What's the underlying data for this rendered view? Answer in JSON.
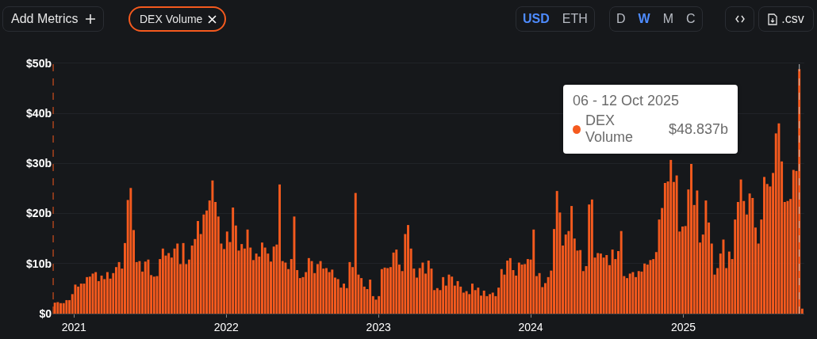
{
  "chart_data": {
    "type": "bar",
    "x": [
      "2020-11-16",
      "2020-11-23",
      "2020-11-30",
      "2020-12-07",
      "2020-12-14",
      "2020-12-21",
      "2020-12-28",
      "2021-01-04",
      "2021-01-11",
      "2021-01-18",
      "2021-01-25",
      "2021-02-01",
      "2021-02-08",
      "2021-02-15",
      "2021-02-22",
      "2021-03-01",
      "2021-03-08",
      "2021-03-15",
      "2021-03-22",
      "2021-03-29",
      "2021-04-05",
      "2021-04-12",
      "2021-04-19",
      "2021-04-26",
      "2021-05-03",
      "2021-05-10",
      "2021-05-17",
      "2021-05-24",
      "2021-05-31",
      "2021-06-07",
      "2021-06-14",
      "2021-06-21",
      "2021-06-28",
      "2021-07-05",
      "2021-07-12",
      "2021-07-19",
      "2021-07-26",
      "2021-08-02",
      "2021-08-09",
      "2021-08-16",
      "2021-08-23",
      "2021-08-30",
      "2021-09-06",
      "2021-09-13",
      "2021-09-20",
      "2021-09-27",
      "2021-10-04",
      "2021-10-11",
      "2021-10-18",
      "2021-10-25",
      "2021-11-01",
      "2021-11-08",
      "2021-11-15",
      "2021-11-22",
      "2021-11-29",
      "2021-12-06",
      "2021-12-13",
      "2021-12-20",
      "2021-12-27",
      "2022-01-03",
      "2022-01-10",
      "2022-01-17",
      "2022-01-24",
      "2022-01-31",
      "2022-02-07",
      "2022-02-14",
      "2022-02-21",
      "2022-02-28",
      "2022-03-07",
      "2022-03-14",
      "2022-03-21",
      "2022-03-28",
      "2022-04-04",
      "2022-04-11",
      "2022-04-18",
      "2022-04-25",
      "2022-05-02",
      "2022-05-09",
      "2022-05-16",
      "2022-05-23",
      "2022-05-30",
      "2022-06-06",
      "2022-06-13",
      "2022-06-20",
      "2022-06-27",
      "2022-07-04",
      "2022-07-11",
      "2022-07-18",
      "2022-07-25",
      "2022-08-01",
      "2022-08-08",
      "2022-08-15",
      "2022-08-22",
      "2022-08-29",
      "2022-09-05",
      "2022-09-12",
      "2022-09-19",
      "2022-09-26",
      "2022-10-03",
      "2022-10-10",
      "2022-10-17",
      "2022-10-24",
      "2022-10-31",
      "2022-11-07",
      "2022-11-14",
      "2022-11-21",
      "2022-11-28",
      "2022-12-05",
      "2022-12-12",
      "2022-12-19",
      "2022-12-26",
      "2023-01-02",
      "2023-01-09",
      "2023-01-16",
      "2023-01-23",
      "2023-01-30",
      "2023-02-06",
      "2023-02-13",
      "2023-02-20",
      "2023-02-27",
      "2023-03-06",
      "2023-03-13",
      "2023-03-20",
      "2023-03-27",
      "2023-04-03",
      "2023-04-10",
      "2023-04-17",
      "2023-04-24",
      "2023-05-01",
      "2023-05-08",
      "2023-05-15",
      "2023-05-22",
      "2023-05-29",
      "2023-06-05",
      "2023-06-12",
      "2023-06-19",
      "2023-06-26",
      "2023-07-03",
      "2023-07-10",
      "2023-07-17",
      "2023-07-24",
      "2023-07-31",
      "2023-08-07",
      "2023-08-14",
      "2023-08-21",
      "2023-08-28",
      "2023-09-04",
      "2023-09-11",
      "2023-09-18",
      "2023-09-25",
      "2023-10-02",
      "2023-10-09",
      "2023-10-16",
      "2023-10-23",
      "2023-10-30",
      "2023-11-06",
      "2023-11-13",
      "2023-11-20",
      "2023-11-27",
      "2023-12-04",
      "2023-12-11",
      "2023-12-18",
      "2023-12-25",
      "2024-01-01",
      "2024-01-08",
      "2024-01-15",
      "2024-01-22",
      "2024-01-29",
      "2024-02-05",
      "2024-02-12",
      "2024-02-19",
      "2024-02-26",
      "2024-03-04",
      "2024-03-11",
      "2024-03-18",
      "2024-03-25",
      "2024-04-01",
      "2024-04-08",
      "2024-04-15",
      "2024-04-22",
      "2024-04-29",
      "2024-05-06",
      "2024-05-13",
      "2024-05-20",
      "2024-05-27",
      "2024-06-03",
      "2024-06-10",
      "2024-06-17",
      "2024-06-24",
      "2024-07-01",
      "2024-07-08",
      "2024-07-15",
      "2024-07-22",
      "2024-07-29",
      "2024-08-05",
      "2024-08-12",
      "2024-08-19",
      "2024-08-26",
      "2024-09-02",
      "2024-09-09",
      "2024-09-16",
      "2024-09-23",
      "2024-09-30",
      "2024-10-07",
      "2024-10-14",
      "2024-10-21",
      "2024-10-28",
      "2024-11-04",
      "2024-11-11",
      "2024-11-18",
      "2024-11-25",
      "2024-12-02",
      "2024-12-09",
      "2024-12-16",
      "2024-12-23",
      "2024-12-30",
      "2025-01-06",
      "2025-01-13",
      "2025-01-20",
      "2025-01-27",
      "2025-02-03",
      "2025-02-10",
      "2025-02-17",
      "2025-02-24",
      "2025-03-03",
      "2025-03-10",
      "2025-03-17",
      "2025-03-24",
      "2025-03-31",
      "2025-04-07",
      "2025-04-14",
      "2025-04-21",
      "2025-04-28",
      "2025-05-05",
      "2025-05-12",
      "2025-05-19",
      "2025-05-26",
      "2025-06-02",
      "2025-06-09",
      "2025-06-16",
      "2025-06-23",
      "2025-06-30",
      "2025-07-07",
      "2025-07-14",
      "2025-07-21",
      "2025-07-28",
      "2025-08-04",
      "2025-08-11",
      "2025-08-18",
      "2025-08-25",
      "2025-09-01",
      "2025-09-08",
      "2025-09-15",
      "2025-09-22",
      "2025-09-29",
      "2025-10-06",
      "2025-10-13"
    ],
    "series": [
      {
        "name": "DEX Volume",
        "color": "#f55a1e",
        "values": [
          2.2,
          2.3,
          2.1,
          2.1,
          2.7,
          2.7,
          3.9,
          5.8,
          5.4,
          6.0,
          6.0,
          7.3,
          7.4,
          8.0,
          8.3,
          6.5,
          7.6,
          6.9,
          8.3,
          7.0,
          8.1,
          9.3,
          10.3,
          9.0,
          14.1,
          22.7,
          25.1,
          16.7,
          10.3,
          10.5,
          8.4,
          10.4,
          10.8,
          7.7,
          7.4,
          7.5,
          10.9,
          13.0,
          11.6,
          12.1,
          11.2,
          13.0,
          14.0,
          9.9,
          14.1,
          9.9,
          10.8,
          13.6,
          14.9,
          18.5,
          15.9,
          19.8,
          20.6,
          22.6,
          26.6,
          22.3,
          19.4,
          14.0,
          12.9,
          16.4,
          14.3,
          21.2,
          17.6,
          12.6,
          13.9,
          13.0,
          16.8,
          13.2,
          10.7,
          12.0,
          11.4,
          14.2,
          13.2,
          12.0,
          10.4,
          13.4,
          13.8,
          25.8,
          10.5,
          10.2,
          8.9,
          10.9,
          19.4,
          8.7,
          7.1,
          7.3,
          8.3,
          11.1,
          10.5,
          8.1,
          9.9,
          10.5,
          9.0,
          9.1,
          8.3,
          8.8,
          7.2,
          6.9,
          5.2,
          6.0,
          5.1,
          10.3,
          9.3,
          24.1,
          7.8,
          7.1,
          5.4,
          4.9,
          6.8,
          3.5,
          2.8,
          3.5,
          8.9,
          9.2,
          9.1,
          9.3,
          12.2,
          12.8,
          9.8,
          8.5,
          15.9,
          17.7,
          13.0,
          9.0,
          7.2,
          9.1,
          10.2,
          8.0,
          10.6,
          9.0,
          4.7,
          5.1,
          4.7,
          7.3,
          5.6,
          7.8,
          7.4,
          5.6,
          6.5,
          5.4,
          4.2,
          4.5,
          3.9,
          6.0,
          4.7,
          5.2,
          3.6,
          4.6,
          3.5,
          3.9,
          4.2,
          3.5,
          5.2,
          8.9,
          7.8,
          10.6,
          11.1,
          8.7,
          7.6,
          10.2,
          9.8,
          9.9,
          10.9,
          10.8,
          16.8,
          7.5,
          8.1,
          5.3,
          6.1,
          7.3,
          8.6,
          16.9,
          24.5,
          20.2,
          13.6,
          15.8,
          16.5,
          21.5,
          15.0,
          12.6,
          12.7,
          8.5,
          9.5,
          21.8,
          22.8,
          11.2,
          12.1,
          12.0,
          11.2,
          11.7,
          9.7,
          12.8,
          10.9,
          12.5,
          16.5,
          7.5,
          7.1,
          8.0,
          8.3,
          7.3,
          8.5,
          8.4,
          10.0,
          9.8,
          10.7,
          10.9,
          12.3,
          18.8,
          21.1,
          26.1,
          26.4,
          30.7,
          26.3,
          27.6,
          16.4,
          17.4,
          17.5,
          24.8,
          29.9,
          21.7,
          24.6,
          14.2,
          15.8,
          22.6,
          18.2,
          14.0,
          7.8,
          9.1,
          12.0,
          14.8,
          9.1,
          12.4,
          10.9,
          18.8,
          22.3,
          26.8,
          22.5,
          19.8,
          24.0,
          23.1,
          17.2,
          14.0,
          18.8,
          27.3,
          25.9,
          25.4,
          28.1,
          36,
          38,
          30.4,
          22.3,
          22.5,
          22.9,
          28.7,
          28.5,
          48.837,
          1.0
        ]
      }
    ],
    "xlim": [
      "2020-11-10",
      "2025-10-18"
    ],
    "xticks": [
      {
        "value": "2021-01-01",
        "label": "2021"
      },
      {
        "value": "2022-01-01",
        "label": "2022"
      },
      {
        "value": "2023-01-01",
        "label": "2023"
      },
      {
        "value": "2024-01-01",
        "label": "2024"
      },
      {
        "value": "2025-01-01",
        "label": "2025"
      }
    ],
    "ylim": [
      0,
      50.3
    ],
    "yticks": [
      {
        "value": 0,
        "label": "$0"
      },
      {
        "value": 10,
        "label": "$10b"
      },
      {
        "value": 20,
        "label": "$20b"
      },
      {
        "value": 30,
        "label": "$30b"
      },
      {
        "value": 40,
        "label": "$40b"
      },
      {
        "value": 50,
        "label": "$50b"
      }
    ],
    "grid": "y",
    "legend": "top right",
    "ref_lines": [
      {
        "axis": "x",
        "value": "2020-11-12",
        "color": "#f55a1e",
        "line_style": "dashed"
      },
      {
        "axis": "x",
        "value": "2025-10-06",
        "color": "#bbbbbb",
        "line_style": "dashed"
      }
    ],
    "annotations": [
      "Add Metrics",
      "DEX Volume",
      "USD",
      "ETH",
      "D",
      "W",
      "M",
      "C",
      ".csv",
      "06 - 12 Oct 2025",
      "$48.837b"
    ]
  }
}
